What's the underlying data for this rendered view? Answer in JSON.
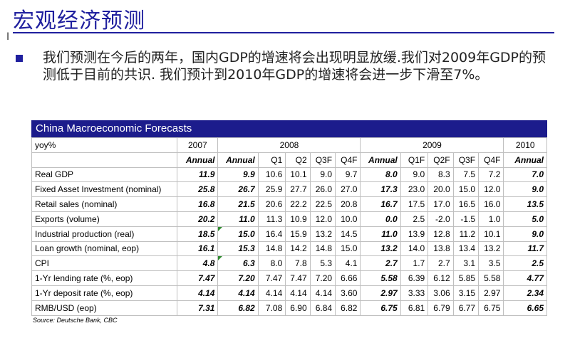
{
  "slide": {
    "title": "宏观经济预测",
    "bullet": "我们预测在今后的两年，国内GDP的增速将会出现明显放缓.我们对2009年GDP的预测低于目前的共识. 我们预计到2010年GDP的增速将会进一步下滑至7%。"
  },
  "table": {
    "title": "China Macroeconomic Forecasts",
    "unit": "yoy%",
    "years": [
      "2007",
      "2008",
      "2009",
      "2010"
    ],
    "subheads": [
      "Annual",
      "Annual",
      "Q1",
      "Q2",
      "Q3F",
      "Q4F",
      "Annual",
      "Q1F",
      "Q2F",
      "Q3F",
      "Q4F",
      "Annual"
    ],
    "rows": [
      {
        "label": "Real GDP",
        "values": [
          "11.9",
          "9.9",
          "10.6",
          "10.1",
          "9.0",
          "9.7",
          "8.0",
          "9.0",
          "8.3",
          "7.5",
          "7.2",
          "7.0"
        ]
      },
      {
        "label": "Fixed Asset Investment (nominal)",
        "values": [
          "25.8",
          "26.7",
          "25.9",
          "27.7",
          "26.0",
          "27.0",
          "17.3",
          "23.0",
          "20.0",
          "15.0",
          "12.0",
          "9.0"
        ]
      },
      {
        "label": "Retail sales (nominal)",
        "values": [
          "16.8",
          "21.5",
          "20.6",
          "22.2",
          "22.5",
          "20.8",
          "16.7",
          "17.5",
          "17.0",
          "16.5",
          "16.0",
          "13.5"
        ]
      },
      {
        "label": "Exports (volume)",
        "values": [
          "20.2",
          "11.0",
          "11.3",
          "10.9",
          "12.0",
          "10.0",
          "0.0",
          "2.5",
          "-2.0",
          "-1.5",
          "1.0",
          "5.0"
        ]
      },
      {
        "label": "Industrial production (real)",
        "values": [
          "18.5",
          "15.0",
          "16.4",
          "15.9",
          "13.2",
          "14.5",
          "11.0",
          "13.9",
          "12.8",
          "11.2",
          "10.1",
          "9.0"
        ]
      },
      {
        "label": "Loan growth (nominal, eop)",
        "values": [
          "16.1",
          "15.3",
          "14.8",
          "14.2",
          "14.8",
          "15.0",
          "13.2",
          "14.0",
          "13.8",
          "13.4",
          "13.2",
          "11.7"
        ]
      },
      {
        "label": "CPI",
        "values": [
          "4.8",
          "6.3",
          "8.0",
          "7.8",
          "5.3",
          "4.1",
          "2.7",
          "1.7",
          "2.7",
          "3.1",
          "3.5",
          "2.5"
        ]
      },
      {
        "label": "1-Yr lending rate (%, eop)",
        "values": [
          "7.47",
          "7.20",
          "7.47",
          "7.47",
          "7.20",
          "6.66",
          "5.58",
          "6.39",
          "6.12",
          "5.85",
          "5.58",
          "4.77"
        ]
      },
      {
        "label": "1-Yr deposit rate (%, eop)",
        "values": [
          "4.14",
          "4.14",
          "4.14",
          "4.14",
          "4.14",
          "3.60",
          "2.97",
          "3.33",
          "3.06",
          "3.15",
          "2.97",
          "2.34"
        ]
      },
      {
        "label": "RMB/USD (eop)",
        "values": [
          "7.31",
          "6.82",
          "7.08",
          "6.90",
          "6.84",
          "6.82",
          "6.75",
          "6.81",
          "6.79",
          "6.77",
          "6.75",
          "6.65"
        ]
      }
    ],
    "source": "Source: Deutsche Bank, CBC"
  },
  "colors": {
    "accent": "#1f1f9e",
    "header_bar": "#1c1c8c",
    "flag": "#2e8b2e"
  }
}
